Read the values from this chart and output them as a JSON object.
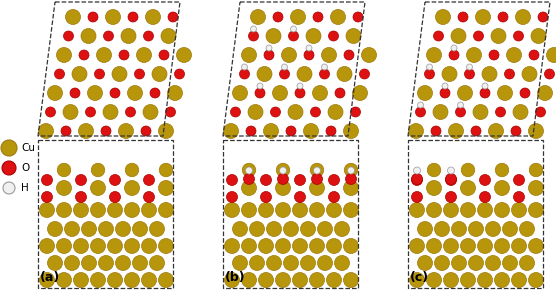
{
  "fig_width": 5.56,
  "fig_height": 2.93,
  "dpi": 100,
  "bg_color": "#ffffff",
  "cu_color": "#b8960c",
  "cu_color2": "#a07808",
  "o_color": "#dd1111",
  "o_edge": "#aa0000",
  "h_color": "#f0f0f0",
  "h_edge": "#999999",
  "panel_labels": [
    "(a)",
    "(b)",
    "(c)"
  ]
}
